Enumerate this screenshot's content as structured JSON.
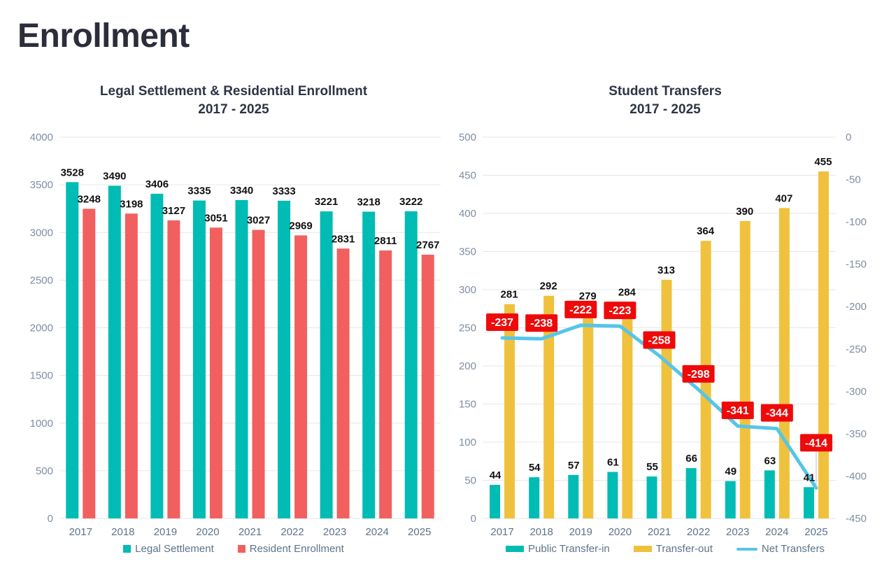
{
  "page": {
    "title": "Enrollment"
  },
  "charts": [
    {
      "title": "Legal Settlement & Residential Enrollment",
      "subtitle": "2017 - 2025"
    },
    {
      "title": "Student Transfers",
      "subtitle": "2017 - 2025"
    }
  ],
  "chart_data": [
    {
      "type": "bar",
      "title": "Legal Settlement & Residential Enrollment 2017 - 2025",
      "categories": [
        "2017",
        "2018",
        "2019",
        "2020",
        "2021",
        "2022",
        "2023",
        "2024",
        "2025"
      ],
      "series": [
        {
          "name": "Legal Settlement",
          "type": "bar",
          "color": "#00BCB4",
          "values": [
            3528,
            3490,
            3406,
            3335,
            3340,
            3333,
            3221,
            3218,
            3222
          ]
        },
        {
          "name": "Resident Enrollment",
          "type": "bar",
          "color": "#F1605F",
          "values": [
            3248,
            3198,
            3127,
            3051,
            3027,
            2969,
            2831,
            2811,
            2767
          ]
        }
      ],
      "xlabel": "",
      "ylabel": "",
      "ylim": [
        0,
        4000
      ],
      "ytick_step": 500,
      "grid": true,
      "legend_position": "bottom",
      "data_labels": true
    },
    {
      "type": "bar+line",
      "title": "Student Transfers 2017 - 2025",
      "categories": [
        "2017",
        "2018",
        "2019",
        "2020",
        "2021",
        "2022",
        "2023",
        "2024",
        "2025"
      ],
      "series": [
        {
          "name": "Public Transfer-in",
          "type": "bar",
          "axis": "left",
          "color": "#00BCB4",
          "values": [
            44,
            54,
            57,
            61,
            55,
            66,
            49,
            63,
            41
          ]
        },
        {
          "name": "Transfer-out",
          "type": "bar",
          "axis": "left",
          "color": "#F0C13D",
          "values": [
            281,
            292,
            279,
            284,
            313,
            364,
            390,
            407,
            455
          ]
        },
        {
          "name": "Net Transfers",
          "type": "line",
          "axis": "right",
          "color": "#54C6E8",
          "values": [
            -237,
            -238,
            -222,
            -223,
            -258,
            -298,
            -341,
            -344,
            -414
          ],
          "label_bg": "#EE0A0A",
          "label_color": "#FFFFFF"
        }
      ],
      "xlabel": "",
      "ylabel": "",
      "ylim_left": [
        0,
        500
      ],
      "ytick_step_left": 50,
      "ylim_right": [
        0,
        -450
      ],
      "ytick_step_right": 50,
      "grid": true,
      "legend_position": "bottom",
      "data_labels": true
    }
  ],
  "colors": {
    "teal": "#00BCB4",
    "red": "#F1605F",
    "gold": "#F0C13D",
    "line_blue": "#54C6E8",
    "label_red": "#EE0A0A",
    "grid": "#E3E7EB",
    "axis_text": "#7D8EA3",
    "category_text": "#5E7389",
    "value_label": "#111111",
    "title_text": "#2E3444",
    "page_title": "#2B2E3A"
  }
}
